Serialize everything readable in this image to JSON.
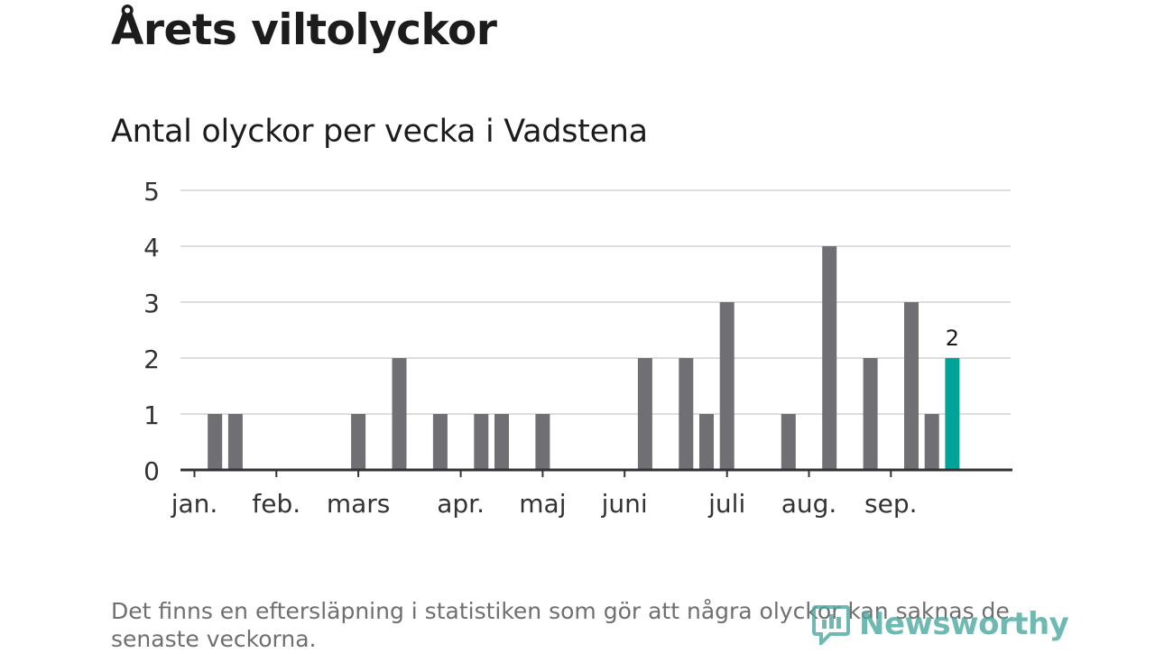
{
  "header": {
    "title": "Årets viltolyckor",
    "subtitle": "Antal olyckor per vecka i Vadstena"
  },
  "footnote": "Det finns en eftersläpning i statistiken som gör att några olyckor kan saknas de senaste veckorna.",
  "brand": {
    "name": "Newsworthy",
    "color": "#4aa89e"
  },
  "colors": {
    "bar": "#706f74",
    "highlight": "#00a398",
    "grid": "#dddddd",
    "axis": "#333333"
  },
  "chart_data": {
    "type": "bar",
    "title": "Antal olyckor per vecka i Vadstena",
    "xlabel": "",
    "ylabel": "",
    "ylim": [
      0,
      5
    ],
    "yticks": [
      0,
      1,
      2,
      3,
      4,
      5
    ],
    "grid": true,
    "x_unit": "week",
    "weeks": [
      1,
      2,
      3,
      4,
      5,
      6,
      7,
      8,
      9,
      10,
      11,
      12,
      13,
      14,
      15,
      16,
      17,
      18,
      19,
      20,
      21,
      22,
      23,
      24,
      25,
      26,
      27,
      28,
      29,
      30,
      31,
      32,
      33,
      34,
      35,
      36,
      37,
      38,
      39,
      40,
      41
    ],
    "values": [
      0,
      1,
      1,
      0,
      0,
      0,
      0,
      0,
      1,
      0,
      2,
      0,
      1,
      0,
      1,
      1,
      0,
      1,
      0,
      0,
      0,
      0,
      2,
      0,
      2,
      1,
      3,
      0,
      0,
      1,
      0,
      4,
      0,
      2,
      0,
      3,
      1,
      2,
      0,
      0,
      0
    ],
    "highlight_week": 38,
    "highlight_label": "2",
    "month_ticks": [
      {
        "label": "jan.",
        "week": 1
      },
      {
        "label": "feb.",
        "week": 5
      },
      {
        "label": "mars",
        "week": 9
      },
      {
        "label": "apr.",
        "week": 14
      },
      {
        "label": "maj",
        "week": 18
      },
      {
        "label": "juni",
        "week": 22
      },
      {
        "label": "juli",
        "week": 27
      },
      {
        "label": "aug.",
        "week": 31
      },
      {
        "label": "sep.",
        "week": 35
      }
    ]
  }
}
